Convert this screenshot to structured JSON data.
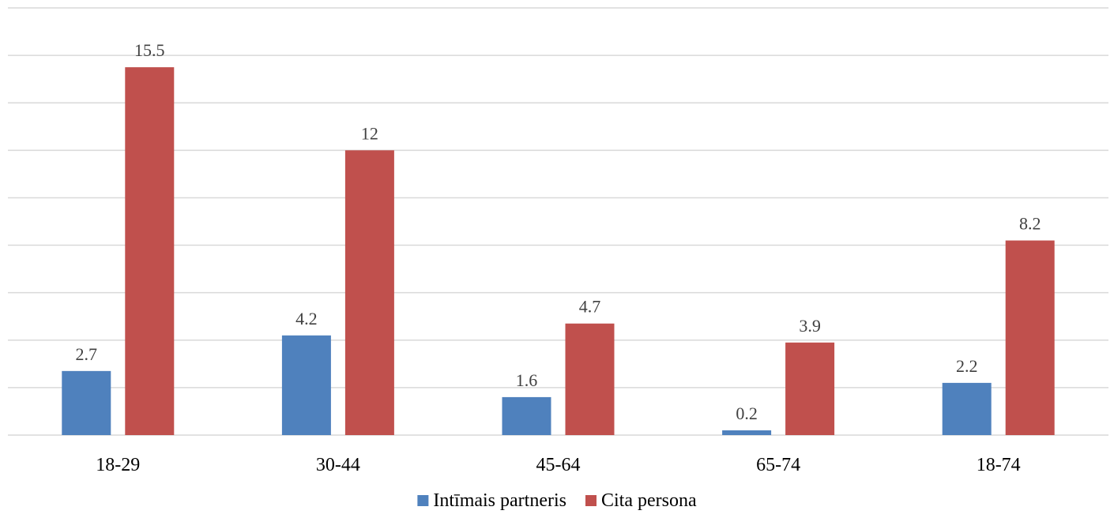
{
  "chart_data": {
    "type": "bar",
    "categories": [
      "18-29",
      "30-44",
      "45-64",
      "65-74",
      "18-74"
    ],
    "series": [
      {
        "name": "Intīmais partneris",
        "color": "#4f81bd",
        "values": [
          2.7,
          4.2,
          1.6,
          0.2,
          2.2
        ]
      },
      {
        "name": "Cita persona",
        "color": "#c0504d",
        "values": [
          15.5,
          12,
          4.7,
          3.9,
          8.2
        ]
      }
    ],
    "title": "",
    "xlabel": "",
    "ylabel": "",
    "ylim": [
      0,
      18
    ],
    "ytick_step": 2,
    "grid": true,
    "y_tick_labels_visible": false,
    "legend_position": "bottom"
  }
}
